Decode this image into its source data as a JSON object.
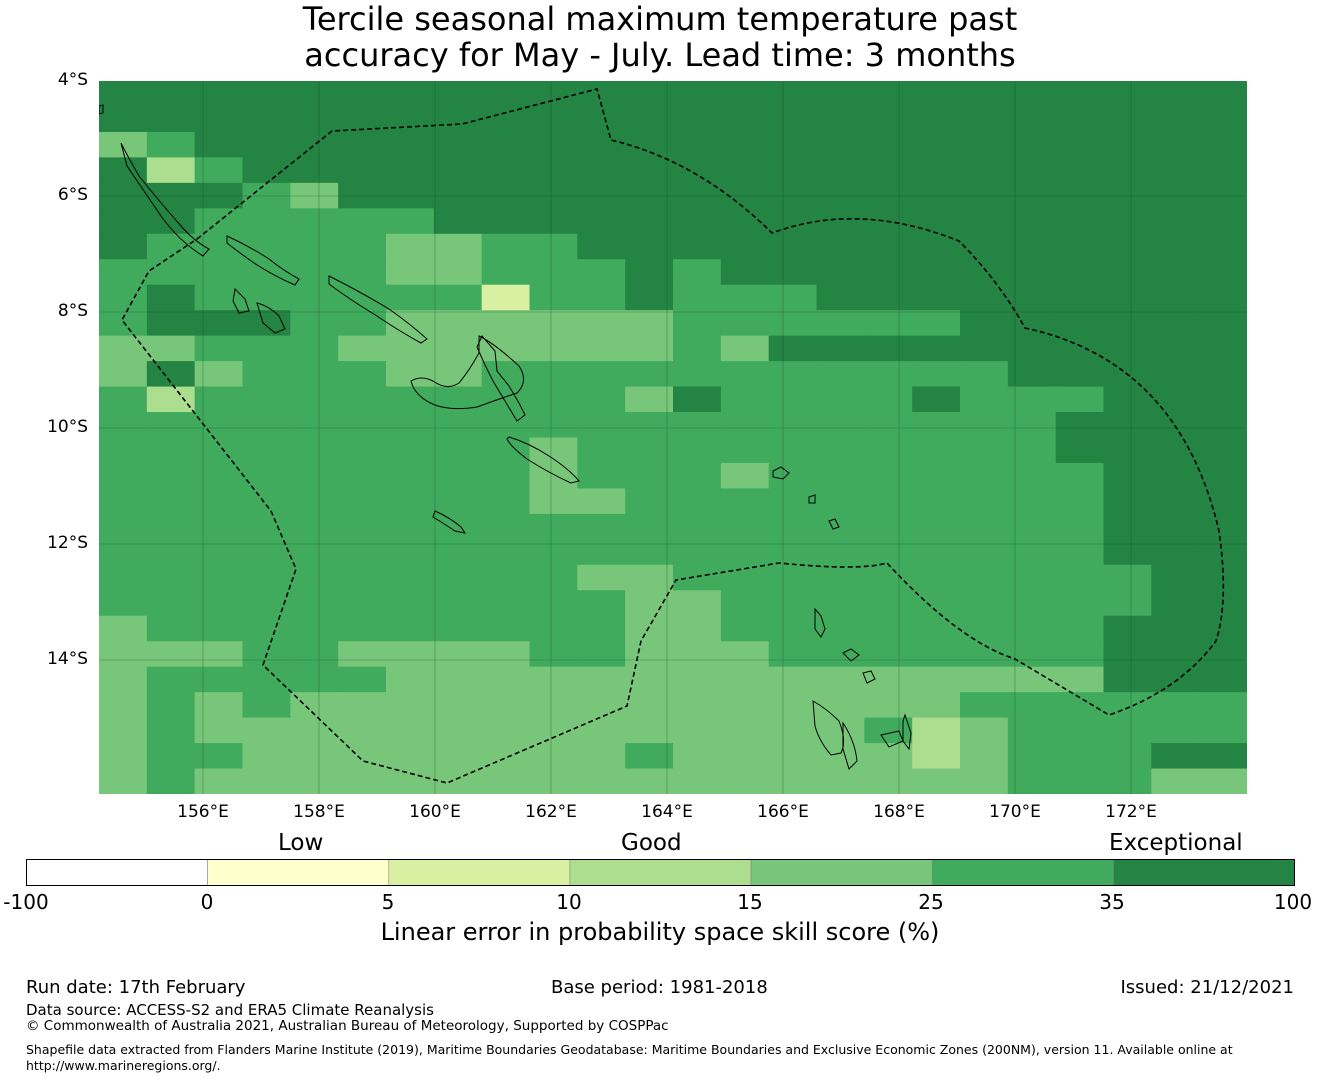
{
  "title": {
    "line1": "Tercile seasonal maximum temperature past",
    "line2": "accuracy for May - July. Lead time: 3 months"
  },
  "axes": {
    "lat_labels": [
      "4°S",
      "6°S",
      "8°S",
      "10°S",
      "12°S",
      "14°S"
    ],
    "lon_labels": [
      "156°E",
      "158°E",
      "160°E",
      "162°E",
      "164°E",
      "166°E",
      "168°E",
      "170°E",
      "172°E"
    ],
    "lon_range": [
      154.2,
      174.0
    ],
    "lat_range": [
      -4.0,
      -16.3
    ]
  },
  "legend": {
    "categories": [
      "Low",
      "Good",
      "Exceptional"
    ],
    "ticks": [
      "-100",
      "0",
      "5",
      "10",
      "15",
      "25",
      "35",
      "100"
    ],
    "colors": [
      "#ffffff",
      "#ffffcc",
      "#d9f0a3",
      "#addd8e",
      "#78c679",
      "#41ab5d",
      "#238443"
    ],
    "title": "Linear error in probability space skill score (%)"
  },
  "grid_palette": [
    "#238443",
    "#41ab5d",
    "#78c679",
    "#addd8e",
    "#d9f0a3"
  ],
  "grid_levels": [
    "000000000000000000000000",
    "000000000000000000000000",
    "210000000000000000000000",
    "031000000000000000000000",
    "000120000000000000000000",
    "001111100000000000000000",
    "011111221100000000000000",
    "111111221110100000000000",
    "101111114110111000000000",
    "100011222222111111000000",
    "221112222222120000000000",
    "202111221111111111100000",
    "131111111112011110111000",
    "111111111111111111110000",
    "111111111211111111110000",
    "111111111211121111111000",
    "111111111221111111111000",
    "111111111111111111111000",
    "111111111111111111111000",
    "111111111122111111111100",
    "111111111112211111111100",
    "211111111112211111111000",
    "222112222112221111111000",
    "211111222222222222222000",
    "212122222222222222111111",
    "212222222222222213211111",
    "211222222221222223211100",
    "212222222222222222211122"
  ],
  "footer": {
    "run_date": "Run date: 17th February",
    "base_period": "Base period: 1981-2018",
    "issued": "Issued: 21/12/2021",
    "data_source": "Data source: ACCESS-S2 and ERA5 Climate Reanalysis",
    "copyright": "© Commonwealth of Australia 2021, Australian Bureau of Meteorology, Supported by COSPPac",
    "shapefile_line1": "Shapefile data extracted from Flanders Marine Institute (2019), Maritime Boundaries Geodatabase: Maritime Boundaries and Exclusive Economic Zones (200NM), version 11. Available online at",
    "shapefile_line2": "http://www.marineregions.org/."
  }
}
